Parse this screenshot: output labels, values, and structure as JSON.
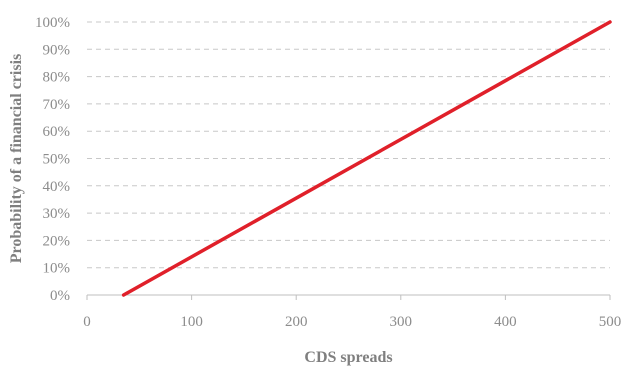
{
  "chart_data": {
    "type": "line",
    "title": "",
    "xlabel": "CDS spreads",
    "ylabel": "Probability of a financial crisis",
    "xlim": [
      0,
      500
    ],
    "ylim": [
      0,
      100
    ],
    "x_ticks": [
      0,
      100,
      200,
      300,
      400,
      500
    ],
    "x_tick_labels": [
      "0",
      "100",
      "200",
      "300",
      "400",
      "500"
    ],
    "y_ticks": [
      0,
      10,
      20,
      30,
      40,
      50,
      60,
      70,
      80,
      90,
      100
    ],
    "y_tick_labels": [
      "0%",
      "10%",
      "20%",
      "30%",
      "40%",
      "50%",
      "60%",
      "70%",
      "80%",
      "90%",
      "100%"
    ],
    "grid": "horizontal-dashed",
    "legend": "none",
    "series": [
      {
        "color": "#e0202a",
        "x": [
          35,
          500
        ],
        "y": [
          0,
          100
        ]
      }
    ]
  }
}
